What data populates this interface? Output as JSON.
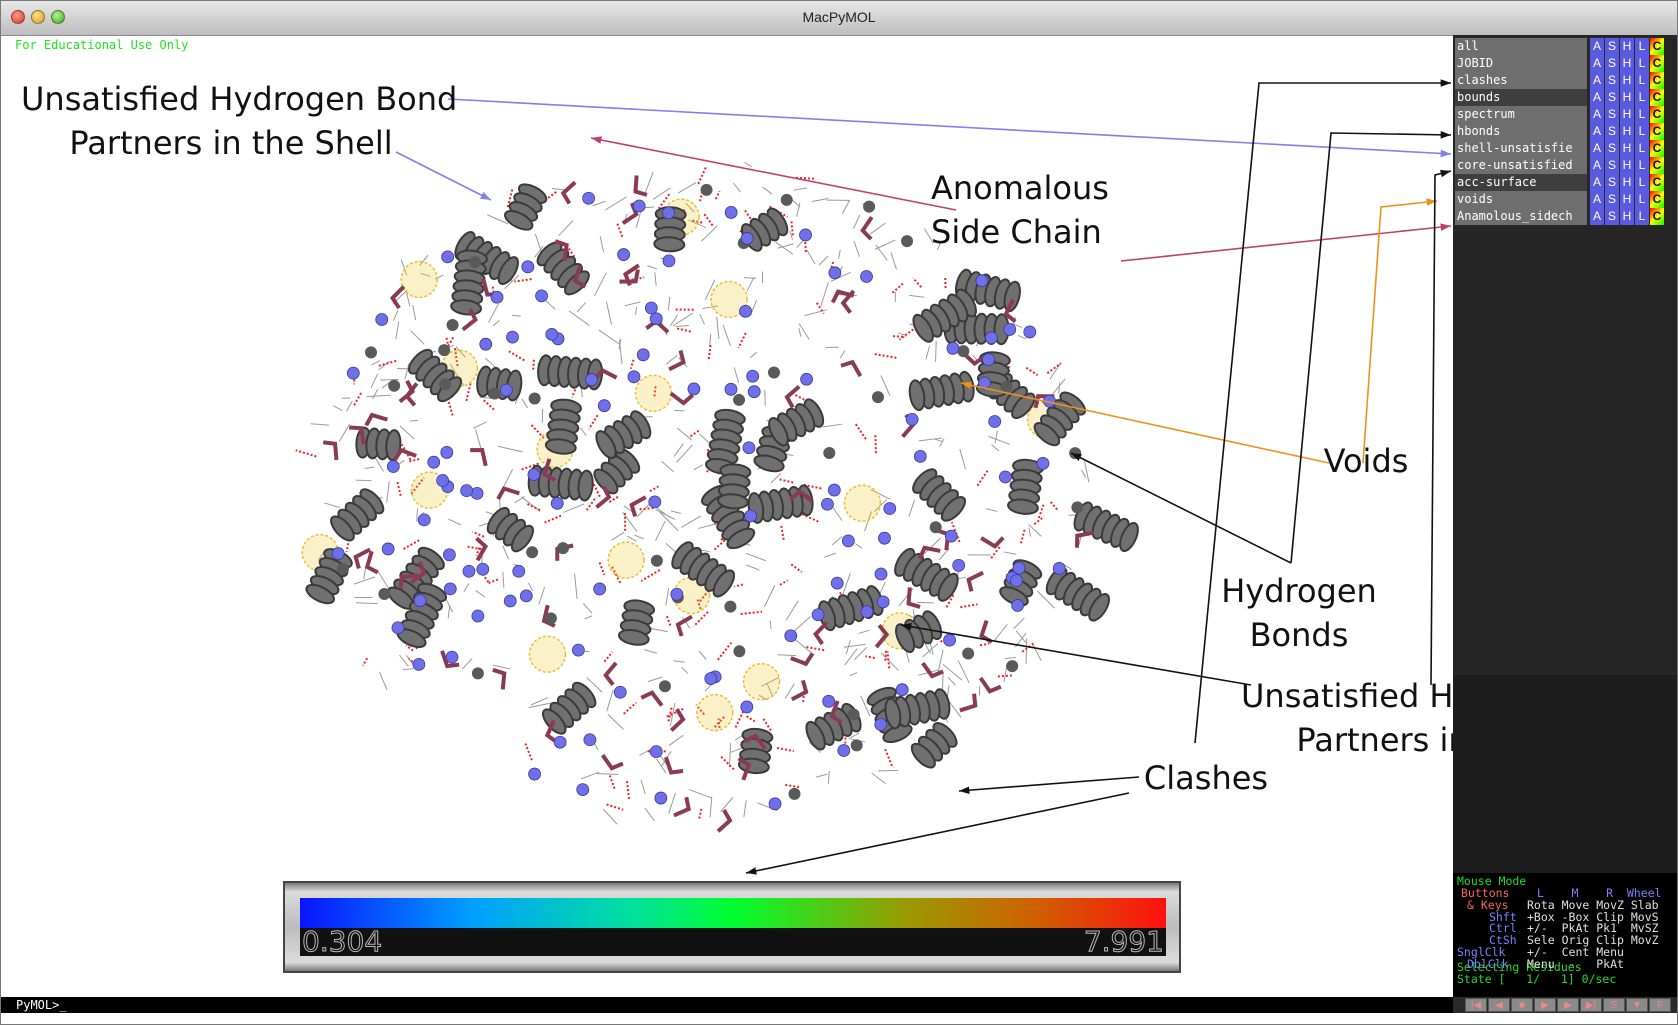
{
  "window": {
    "title": "MacPyMOL"
  },
  "viewer": {
    "notice": "For Educational Use Only",
    "command_prompt": "PyMOL>_"
  },
  "annotations": {
    "shell_unsat": [
      "Unsatisfied Hydrogen Bond",
      "Partners in the Shell"
    ],
    "anomalous": [
      "Anomalous",
      "Side Chain"
    ],
    "voids": "Voids",
    "hbonds": [
      "Hydrogen",
      "Bonds"
    ],
    "core_unsat": [
      "Unsatisfied Hydrogen Bond",
      "Partners in the Core"
    ],
    "clashes": "Clashes"
  },
  "colorbar": {
    "min": "0.304",
    "max": "7.991"
  },
  "objects": [
    {
      "name": "all",
      "selected": false
    },
    {
      "name": "JOBID",
      "selected": false
    },
    {
      "name": "clashes",
      "selected": false
    },
    {
      "name": "bounds",
      "selected": true
    },
    {
      "name": "spectrum",
      "selected": false
    },
    {
      "name": "hbonds",
      "selected": false
    },
    {
      "name": "shell-unsatisfie",
      "selected": false
    },
    {
      "name": "core-unsatisfied",
      "selected": false
    },
    {
      "name": "acc-surface",
      "selected": true
    },
    {
      "name": "voids",
      "selected": false
    },
    {
      "name": "Anamolous_sidech",
      "selected": false
    }
  ],
  "object_buttons": [
    "A",
    "S",
    "H",
    "L",
    "C"
  ],
  "mouse_mode": {
    "title": "Mouse Mode",
    "header_buttons": "Buttons",
    "header_cols": "  L    M    R  Wheel",
    "rows": [
      {
        "key": "& Keys",
        "vals": "Rota Move MovZ Slab"
      },
      {
        "key": "Shft",
        "vals": "+Box -Box Clip MovS"
      },
      {
        "key": "Ctrl",
        "vals": "+/-  PkAt Pk1  MvSZ"
      },
      {
        "key": "CtSh",
        "vals": "Sele Orig Clip MovZ"
      },
      {
        "key": "SnglClk",
        "vals": "+/-  Cent Menu"
      },
      {
        "key": "DblClk",
        "vals": "Menu  -   PkAt"
      }
    ],
    "selecting": "Selecting Residues",
    "state": "State [   1/   1] 0/sec"
  },
  "playback_buttons": [
    "|◀",
    "◀",
    "■",
    "▶",
    "▶",
    "▶|",
    "S",
    "▼",
    "F"
  ],
  "colors": {
    "accent_green": "#1de51d",
    "blue_arrow": "#8080ee",
    "red_arrow": "#c04070",
    "orange_arrow": "#f0901c"
  }
}
